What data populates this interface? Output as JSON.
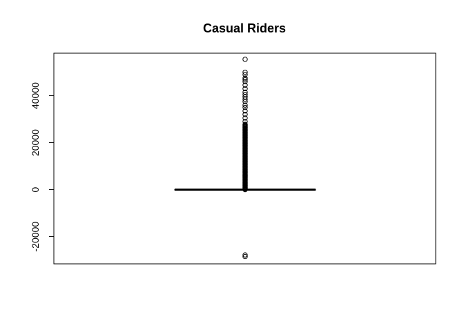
{
  "chart_data": {
    "type": "box",
    "title": "Casual Riders",
    "xlabel": "",
    "ylabel": "",
    "ylim": [
      -31600,
      58100
    ],
    "y_ticks": [
      -20000,
      0,
      20000,
      40000
    ],
    "y_tick_labels": [
      "-20000",
      "0",
      "20000",
      "40000"
    ],
    "grid": false,
    "box": {
      "min": 0,
      "q1": 0,
      "median": 0,
      "q3": 0,
      "max": 0
    },
    "outliers": {
      "upper_band": [
        0,
        28000
      ],
      "extra_upper": [
        29000,
        30500,
        32000,
        33500,
        35000,
        36000,
        37500,
        38500,
        39500,
        40500,
        41500,
        43000,
        44500,
        46000,
        46800,
        47500,
        49000,
        50000,
        55500
      ],
      "lower": [
        -27800,
        -28500
      ]
    }
  }
}
